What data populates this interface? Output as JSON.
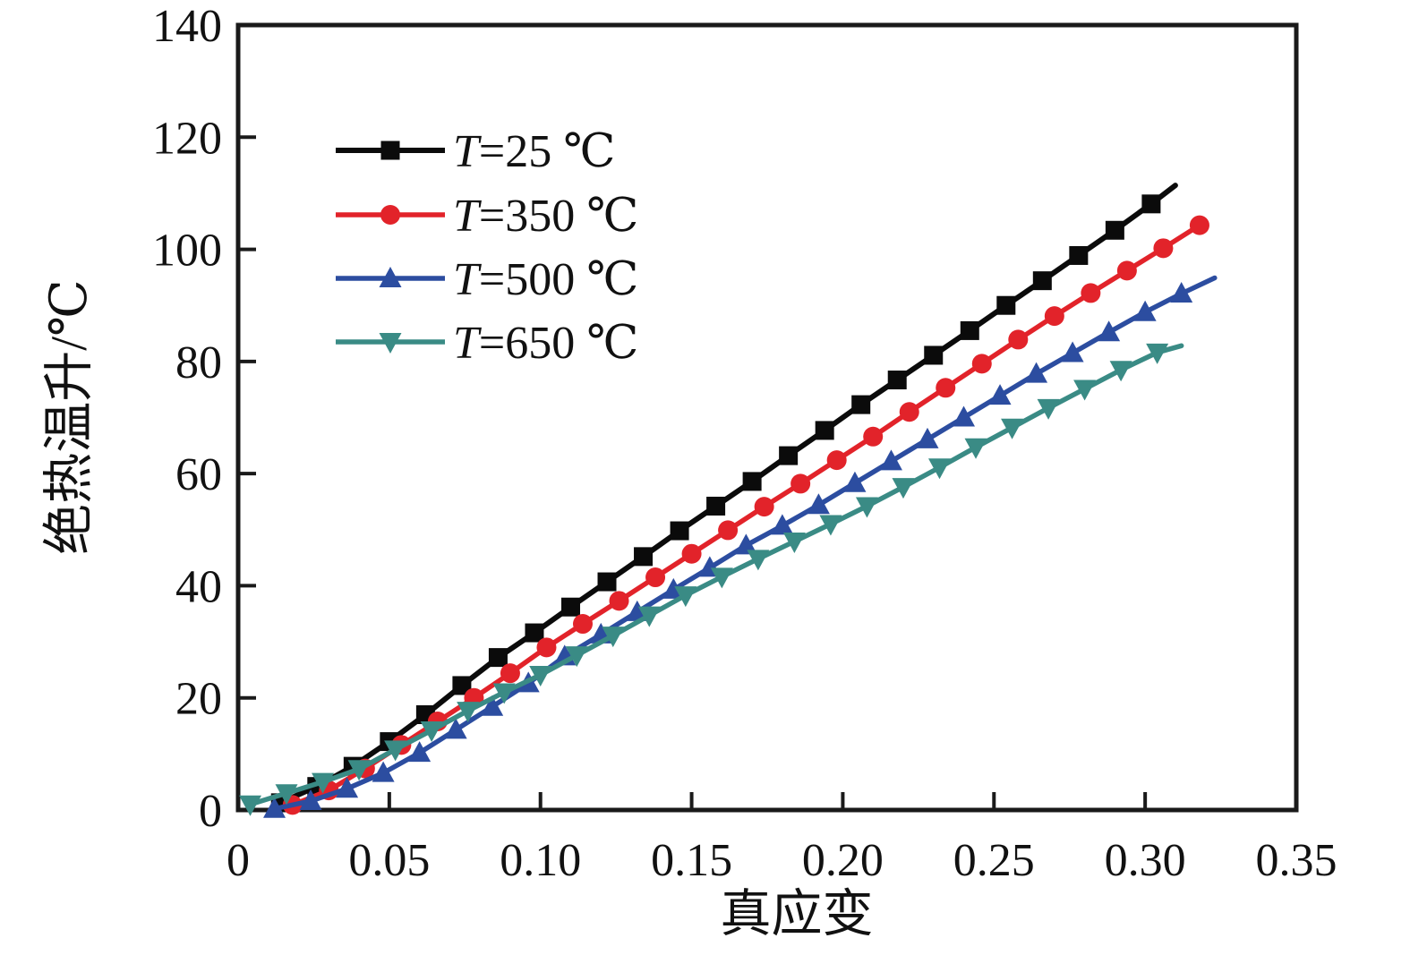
{
  "figure": {
    "background": "#ffffff",
    "frame_color": "#1a1a1a"
  },
  "chart_data": {
    "type": "line",
    "title": "",
    "xlabel": "真应变",
    "ylabel": "绝热温升/℃",
    "xlim": [
      0,
      0.35
    ],
    "ylim": [
      0,
      140
    ],
    "grid": false,
    "legend_position": "upper-left-inside",
    "x_ticks": [
      {
        "value": 0.0,
        "label": "0"
      },
      {
        "value": 0.05,
        "label": "0.05"
      },
      {
        "value": 0.1,
        "label": "0.10"
      },
      {
        "value": 0.15,
        "label": "0.15"
      },
      {
        "value": 0.2,
        "label": "0.20"
      },
      {
        "value": 0.25,
        "label": "0.25"
      },
      {
        "value": 0.3,
        "label": "0.30"
      },
      {
        "value": 0.35,
        "label": "0.35"
      }
    ],
    "y_ticks": [
      {
        "value": 0,
        "label": "0"
      },
      {
        "value": 20,
        "label": "20"
      },
      {
        "value": 40,
        "label": "40"
      },
      {
        "value": 60,
        "label": "60"
      },
      {
        "value": 80,
        "label": "80"
      },
      {
        "value": 100,
        "label": "100"
      },
      {
        "value": 120,
        "label": "120"
      },
      {
        "value": 140,
        "label": "140"
      }
    ],
    "series": [
      {
        "name": "T=25 ℃",
        "color": "#0b0b0b",
        "marker": "square",
        "points": [
          [
            0.014,
            1.3
          ],
          [
            0.026,
            4.2
          ],
          [
            0.038,
            7.8
          ],
          [
            0.05,
            12.2
          ],
          [
            0.062,
            17.0
          ],
          [
            0.074,
            22.2
          ],
          [
            0.086,
            27.2
          ],
          [
            0.098,
            31.6
          ],
          [
            0.11,
            36.2
          ],
          [
            0.122,
            40.7
          ],
          [
            0.134,
            45.2
          ],
          [
            0.146,
            49.8
          ],
          [
            0.158,
            54.2
          ],
          [
            0.17,
            58.6
          ],
          [
            0.182,
            63.2
          ],
          [
            0.194,
            67.7
          ],
          [
            0.206,
            72.3
          ],
          [
            0.218,
            76.7
          ],
          [
            0.23,
            81.1
          ],
          [
            0.242,
            85.5
          ],
          [
            0.254,
            90.0
          ],
          [
            0.266,
            94.4
          ],
          [
            0.278,
            98.9
          ],
          [
            0.29,
            103.4
          ],
          [
            0.302,
            108.1
          ]
        ],
        "line_end": [
          0.31,
          111.4
        ]
      },
      {
        "name": "T=350 ℃",
        "color": "#e2232a",
        "marker": "circle",
        "points": [
          [
            0.018,
            0.9
          ],
          [
            0.03,
            3.5
          ],
          [
            0.042,
            7.4
          ],
          [
            0.054,
            11.6
          ],
          [
            0.066,
            15.8
          ],
          [
            0.078,
            20.0
          ],
          [
            0.09,
            24.4
          ],
          [
            0.102,
            29.0
          ],
          [
            0.114,
            33.2
          ],
          [
            0.126,
            37.3
          ],
          [
            0.138,
            41.5
          ],
          [
            0.15,
            45.7
          ],
          [
            0.162,
            49.9
          ],
          [
            0.174,
            54.1
          ],
          [
            0.186,
            58.2
          ],
          [
            0.198,
            62.4
          ],
          [
            0.21,
            66.6
          ],
          [
            0.222,
            71.0
          ],
          [
            0.234,
            75.3
          ],
          [
            0.246,
            79.6
          ],
          [
            0.258,
            83.9
          ],
          [
            0.27,
            88.1
          ],
          [
            0.282,
            92.2
          ],
          [
            0.294,
            96.2
          ],
          [
            0.306,
            100.2
          ],
          [
            0.318,
            104.3
          ]
        ],
        "line_end": [
          0.318,
          104.3
        ]
      },
      {
        "name": "T=500 ℃",
        "color": "#2c4da0",
        "marker": "triangle-up",
        "points": [
          [
            0.012,
            0.2
          ],
          [
            0.024,
            1.6
          ],
          [
            0.036,
            3.8
          ],
          [
            0.048,
            6.6
          ],
          [
            0.06,
            10.2
          ],
          [
            0.072,
            14.3
          ],
          [
            0.084,
            18.4
          ],
          [
            0.096,
            22.6
          ],
          [
            0.108,
            27.4
          ],
          [
            0.12,
            31.3
          ],
          [
            0.132,
            35.3
          ],
          [
            0.144,
            39.3
          ],
          [
            0.156,
            43.2
          ],
          [
            0.168,
            47.2
          ],
          [
            0.18,
            50.7
          ],
          [
            0.192,
            54.4
          ],
          [
            0.204,
            58.3
          ],
          [
            0.216,
            62.2
          ],
          [
            0.228,
            66.1
          ],
          [
            0.24,
            70.0
          ],
          [
            0.252,
            73.9
          ],
          [
            0.264,
            77.8
          ],
          [
            0.276,
            81.5
          ],
          [
            0.288,
            85.2
          ],
          [
            0.3,
            88.8
          ],
          [
            0.312,
            92.1
          ]
        ],
        "line_end": [
          0.323,
          94.9
        ]
      },
      {
        "name": "T=650 ℃",
        "color": "#3a8b85",
        "marker": "triangle-down",
        "points": [
          [
            0.004,
            1.0
          ],
          [
            0.016,
            3.0
          ],
          [
            0.028,
            5.0
          ],
          [
            0.04,
            7.3
          ],
          [
            0.052,
            10.8
          ],
          [
            0.064,
            14.2
          ],
          [
            0.076,
            17.7
          ],
          [
            0.088,
            21.0
          ],
          [
            0.1,
            24.1
          ],
          [
            0.112,
            27.6
          ],
          [
            0.124,
            31.1
          ],
          [
            0.136,
            34.7
          ],
          [
            0.148,
            38.3
          ],
          [
            0.16,
            41.6
          ],
          [
            0.172,
            44.8
          ],
          [
            0.184,
            47.9
          ],
          [
            0.196,
            51.0
          ],
          [
            0.208,
            54.2
          ],
          [
            0.22,
            57.6
          ],
          [
            0.232,
            61.1
          ],
          [
            0.244,
            64.7
          ],
          [
            0.256,
            68.2
          ],
          [
            0.268,
            71.7
          ],
          [
            0.28,
            75.1
          ],
          [
            0.292,
            78.5
          ],
          [
            0.304,
            81.6
          ]
        ],
        "line_end": [
          0.312,
          82.8
        ]
      }
    ]
  }
}
